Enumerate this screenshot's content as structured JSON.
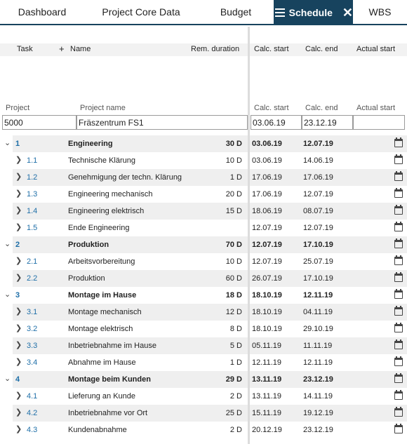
{
  "tabs": [
    {
      "label": "Dashboard"
    },
    {
      "label": "Project Core Data"
    },
    {
      "label": "Budget"
    },
    {
      "label": "Schedule"
    },
    {
      "label": "WBS"
    }
  ],
  "columns": {
    "task": "Task",
    "name": "Name",
    "rem_duration": "Rem. duration",
    "calc_start": "Calc. start",
    "calc_end": "Calc. end",
    "actual_start": "Actual start"
  },
  "filter": {
    "project_label": "Project",
    "project_name_label": "Project name",
    "calc_start_label": "Calc. start",
    "calc_end_label": "Calc. end",
    "actual_start_label": "Actual start",
    "project_value": "5000",
    "project_name_value": "Fräszentrum FS1",
    "calc_start_value": "03.06.19",
    "calc_end_value": "23.12.19",
    "actual_start_value": ""
  },
  "rows": [
    {
      "task": "1",
      "name": "Engineering",
      "dur": "30 D",
      "start": "03.06.19",
      "end": "12.07.19",
      "group": true
    },
    {
      "task": "1.1",
      "name": "Technische Klärung",
      "dur": "10 D",
      "start": "03.06.19",
      "end": "14.06.19",
      "group": false
    },
    {
      "task": "1.2",
      "name": "Genehmigung der techn. Klärung",
      "dur": "1 D",
      "start": "17.06.19",
      "end": "17.06.19",
      "group": false
    },
    {
      "task": "1.3",
      "name": "Engineering mechanisch",
      "dur": "20 D",
      "start": "17.06.19",
      "end": "12.07.19",
      "group": false
    },
    {
      "task": "1.4",
      "name": "Engineering elektrisch",
      "dur": "15 D",
      "start": "18.06.19",
      "end": "08.07.19",
      "group": false
    },
    {
      "task": "1.5",
      "name": "Ende Engineering",
      "dur": "",
      "start": "12.07.19",
      "end": "12.07.19",
      "group": false
    },
    {
      "task": "2",
      "name": "Produktion",
      "dur": "70 D",
      "start": "12.07.19",
      "end": "17.10.19",
      "group": true
    },
    {
      "task": "2.1",
      "name": "Arbeitsvorbereitung",
      "dur": "10 D",
      "start": "12.07.19",
      "end": "25.07.19",
      "group": false
    },
    {
      "task": "2.2",
      "name": "Produktion",
      "dur": "60 D",
      "start": "26.07.19",
      "end": "17.10.19",
      "group": false
    },
    {
      "task": "3",
      "name": "Montage im Hause",
      "dur": "18 D",
      "start": "18.10.19",
      "end": "12.11.19",
      "group": true
    },
    {
      "task": "3.1",
      "name": "Montage mechanisch",
      "dur": "12 D",
      "start": "18.10.19",
      "end": "04.11.19",
      "group": false
    },
    {
      "task": "3.2",
      "name": "Montage elektrisch",
      "dur": "8 D",
      "start": "18.10.19",
      "end": "29.10.19",
      "group": false
    },
    {
      "task": "3.3",
      "name": "Inbetriebnahme im Hause",
      "dur": "5 D",
      "start": "05.11.19",
      "end": "11.11.19",
      "group": false
    },
    {
      "task": "3.4",
      "name": "Abnahme im Hause",
      "dur": "1 D",
      "start": "12.11.19",
      "end": "12.11.19",
      "group": false
    },
    {
      "task": "4",
      "name": "Montage beim Kunden",
      "dur": "29 D",
      "start": "13.11.19",
      "end": "23.12.19",
      "group": true
    },
    {
      "task": "4.1",
      "name": "Lieferung an Kunde",
      "dur": "2 D",
      "start": "13.11.19",
      "end": "14.11.19",
      "group": false
    },
    {
      "task": "4.2",
      "name": "Inbetriebnahme vor Ort",
      "dur": "25 D",
      "start": "15.11.19",
      "end": "19.12.19",
      "group": false
    },
    {
      "task": "4.3",
      "name": "Kundenabnahme",
      "dur": "2 D",
      "start": "20.12.19",
      "end": "23.12.19",
      "group": false
    }
  ],
  "icons": {
    "expand_group": "chevron-down-icon",
    "expand_item": "chevron-right-icon",
    "calendar": "calendar-icon",
    "menu": "menu-icon",
    "close": "close-icon",
    "add": "plus-icon"
  },
  "colors": {
    "active_tab": "#17435e",
    "task_number": "#1f6fa8",
    "row_shade": "#efefef"
  }
}
